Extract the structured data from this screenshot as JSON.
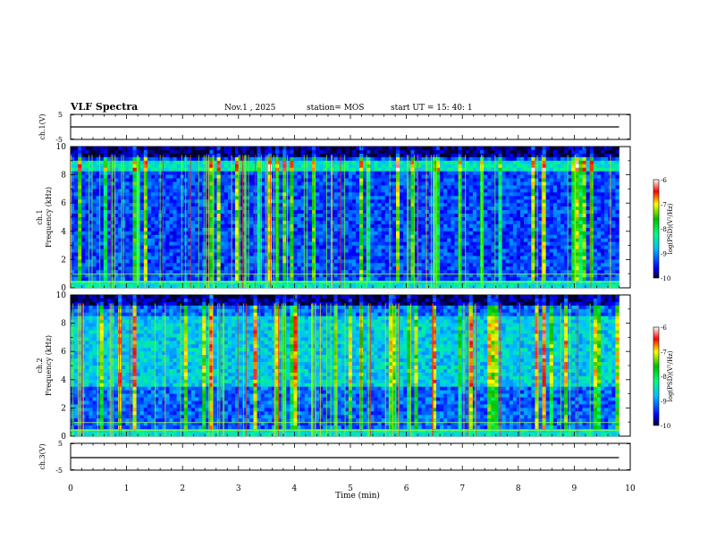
{
  "header": {
    "title": "VLF Spectra",
    "date": "Nov.1 , 2025",
    "station": "station= MOS",
    "start": "start UT = 15: 40: 1"
  },
  "chart_data": [
    {
      "type": "line",
      "title": "",
      "ylabel": "ch.1(V)",
      "ylim": [
        -5,
        5
      ],
      "yticks": [
        "5",
        "-5"
      ],
      "xlim": [
        0,
        10
      ],
      "series": [
        {
          "x": [
            0,
            9.8
          ],
          "y": [
            0,
            0
          ]
        }
      ]
    },
    {
      "type": "heatmap",
      "ylabel": "ch.1\nFrequency (kHz)",
      "ylim": [
        0,
        10
      ],
      "yticks": [
        "0",
        "2",
        "4",
        "6",
        "8",
        "10"
      ],
      "xlim": [
        0,
        10
      ],
      "colorbar": {
        "label": "log(PSD)(V²/Hz)",
        "range": [
          -10,
          -6
        ],
        "ticks": [
          "-6",
          "-7",
          "-8",
          "-9",
          "-10"
        ]
      },
      "data_end_min": 9.8
    },
    {
      "type": "heatmap",
      "ylabel": "ch.2\nFrequency (kHz)",
      "ylim": [
        0,
        10
      ],
      "yticks": [
        "0",
        "2",
        "4",
        "6",
        "8",
        "10"
      ],
      "xlim": [
        0,
        10
      ],
      "colorbar": {
        "label": "log(PSD)(V²/Hz)",
        "range": [
          -10,
          -6
        ],
        "ticks": [
          "-6",
          "-7",
          "-8",
          "-9",
          "-10"
        ]
      },
      "data_end_min": 9.8
    },
    {
      "type": "line",
      "ylabel": "ch.3(V)",
      "ylim": [
        -5,
        5
      ],
      "yticks": [
        "5",
        "-5"
      ],
      "xlim": [
        0,
        10
      ],
      "series": [
        {
          "x": [
            0,
            9.8
          ],
          "y": [
            0,
            0
          ]
        }
      ]
    }
  ],
  "xaxis": {
    "label": "Time (min)",
    "ticks": [
      "0",
      "1",
      "2",
      "3",
      "4",
      "5",
      "6",
      "7",
      "8",
      "9",
      "10"
    ]
  },
  "labels": {
    "ch1v": "ch.1(V)",
    "ch1": "ch.1",
    "freq": "Frequency (kHz)",
    "ch2": "ch.2",
    "ch3v": "ch.3(V)",
    "cbar": "log(PSD)(V²/Hz)"
  }
}
